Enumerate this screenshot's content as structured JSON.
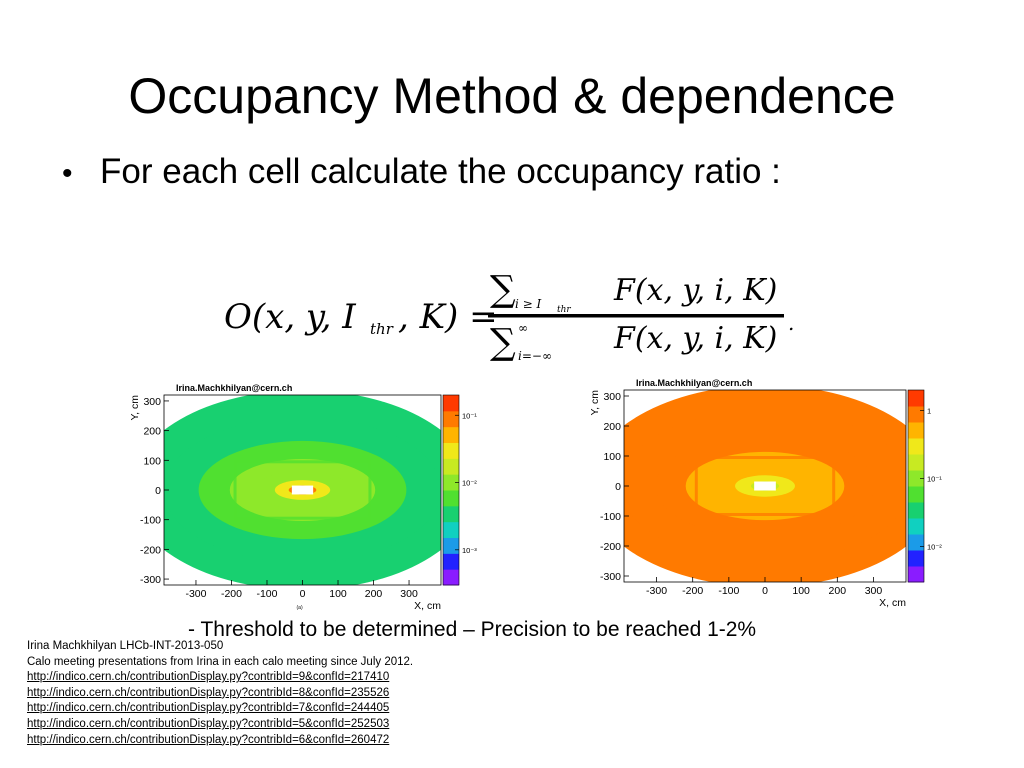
{
  "slide": {
    "title": "Occupancy Method & dependence",
    "bullet": "For each cell calculate the occupancy ratio :",
    "formula": {
      "lhs": "O(x, y, I",
      "lhs_sub": "thr",
      "lhs_tail": ", K) =",
      "numerator_sum_sub": "i ≥ I",
      "numerator_sum_sub2": "thr",
      "numerator": "F(x, y, i, K)",
      "denominator_sum_sup": "∞",
      "denominator_sum_sub": "i=−∞",
      "denominator": "F(x, y, i, K)",
      "trail": "."
    },
    "caption": "- Threshold to be determined – Precision to be reached 1-2%",
    "references": [
      {
        "text": "Irina Machkhilyan LHCb-INT-2013-050",
        "link": false
      },
      {
        "text": "Calo meeting presentations from Irina in each calo meeting since July 2012.",
        "link": false
      },
      {
        "text": "http://indico.cern.ch/contributionDisplay.py?contribId=9&confId=217410",
        "link": true
      },
      {
        "text": "http://indico.cern.ch/contributionDisplay.py?contribId=8&confId=235526",
        "link": true
      },
      {
        "text": "http://indico.cern.ch/contributionDisplay.py?contribId=7&confId=244405",
        "link": true
      },
      {
        "text": "http://indico.cern.ch/contributionDisplay.py?contribId=5&confId=252503",
        "link": true
      },
      {
        "text": "http://indico.cern.ch/contributionDisplay.py?contribId=6&confId=260472",
        "link": true
      }
    ]
  },
  "chart_data": [
    {
      "type": "heatmap",
      "title": "Irina.Machkhilyan@cern.ch",
      "xlabel": "X, cm",
      "ylabel": "Y, cm",
      "xlim": [
        -390,
        390
      ],
      "ylim": [
        -320,
        320
      ],
      "xticks": [
        -300,
        -200,
        -100,
        0,
        100,
        200,
        300
      ],
      "yticks": [
        300,
        200,
        100,
        0,
        -100,
        -200,
        -300
      ],
      "colorbar_ticks": [
        "10⁻¹",
        "10⁻²",
        "10⁻³"
      ],
      "colorbar_tick_values": [
        0.1,
        0.01,
        0.001
      ],
      "zscale": "log",
      "zrange": [
        0.0003,
        0.2
      ],
      "palette": [
        "#8a1cff",
        "#2222ff",
        "#1b9be8",
        "#10d0c0",
        "#18d070",
        "#50e030",
        "#8ee82a",
        "#c8ea22",
        "#f0e81a",
        "#ffb400",
        "#ff7a00",
        "#ff3a00"
      ],
      "value_bands": [
        {
          "radius": 1.0,
          "z": 0.0035
        },
        {
          "radius": 0.8,
          "z": 0.0045
        },
        {
          "radius": 0.6,
          "z": 0.006
        },
        {
          "radius": 0.42,
          "z": 0.008
        },
        {
          "radius": 0.28,
          "z": 0.012
        },
        {
          "radius": 0.16,
          "z": 0.025
        },
        {
          "radius": 0.08,
          "z": 0.08
        }
      ],
      "beam_hole": {
        "x": [
          -30,
          30
        ],
        "y": [
          -15,
          15
        ]
      },
      "inner_region": {
        "x": [
          -190,
          190
        ],
        "y": [
          -95,
          95
        ]
      },
      "footnote": "(a)"
    },
    {
      "type": "heatmap",
      "title": "Irina.Machkhilyan@cern.ch",
      "xlabel": "X, cm",
      "ylabel": "Y, cm",
      "xlim": [
        -390,
        390
      ],
      "ylim": [
        -320,
        320
      ],
      "xticks": [
        -300,
        -200,
        -100,
        0,
        100,
        200,
        300
      ],
      "yticks": [
        300,
        200,
        100,
        0,
        -100,
        -200,
        -300
      ],
      "colorbar_ticks": [
        "1",
        "10⁻¹",
        "10⁻²"
      ],
      "colorbar_tick_values": [
        1,
        0.1,
        0.01
      ],
      "zscale": "log",
      "zrange": [
        0.003,
        2
      ],
      "palette": [
        "#8a1cff",
        "#2222ff",
        "#1b9be8",
        "#10d0c0",
        "#18d070",
        "#50e030",
        "#8ee82a",
        "#c8ea22",
        "#f0e81a",
        "#ffb400",
        "#ff7a00",
        "#ff3a00"
      ],
      "value_bands": [
        {
          "radius": 1.0,
          "z": 1.1
        },
        {
          "radius": 0.82,
          "z": 0.9
        },
        {
          "radius": 0.62,
          "z": 0.7
        },
        {
          "radius": 0.45,
          "z": 0.55
        },
        {
          "radius": 0.3,
          "z": 0.4
        },
        {
          "radius": 0.17,
          "z": 0.28
        },
        {
          "radius": 0.08,
          "z": 0.2
        }
      ],
      "beam_hole": {
        "x": [
          -30,
          30
        ],
        "y": [
          -15,
          15
        ]
      },
      "inner_region": {
        "x": [
          -190,
          190
        ],
        "y": [
          -95,
          95
        ]
      },
      "footnote": ""
    }
  ]
}
